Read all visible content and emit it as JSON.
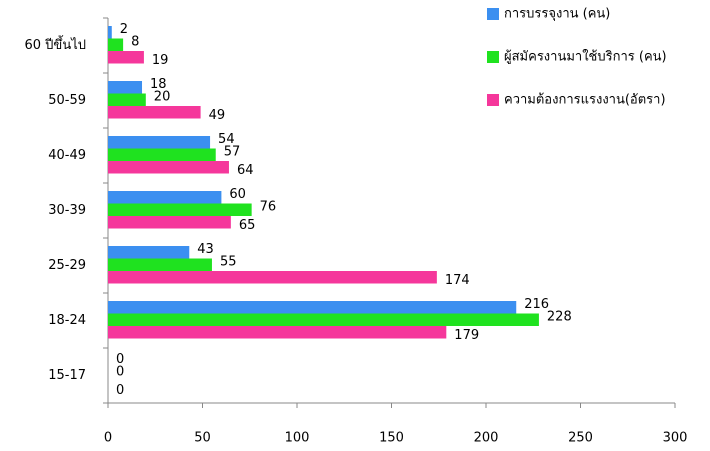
{
  "chart_data": {
    "type": "barh",
    "categories": [
      "60 ปีขึ้นไป",
      "50-59",
      "40-49",
      "30-39",
      "25-29",
      "18-24",
      "15-17"
    ],
    "series": [
      {
        "name": "การบรรจุงาน (คน)",
        "color": "#3b8ff0",
        "values": [
          2,
          18,
          54,
          60,
          43,
          216,
          0
        ]
      },
      {
        "name": "ผู้สมัครงานมาใช้บริการ (คน)",
        "color": "#1fe21f",
        "values": [
          8,
          20,
          57,
          76,
          55,
          228,
          0
        ]
      },
      {
        "name": "ความต้องการแรงงาน(อัตรา)",
        "color": "#f5379b",
        "values": [
          19,
          49,
          64,
          65,
          174,
          179,
          0
        ]
      }
    ],
    "xlim": [
      0,
      300
    ],
    "xticks": [
      0,
      50,
      100,
      150,
      200,
      250,
      300
    ],
    "grid": false,
    "legend": "top-right"
  }
}
